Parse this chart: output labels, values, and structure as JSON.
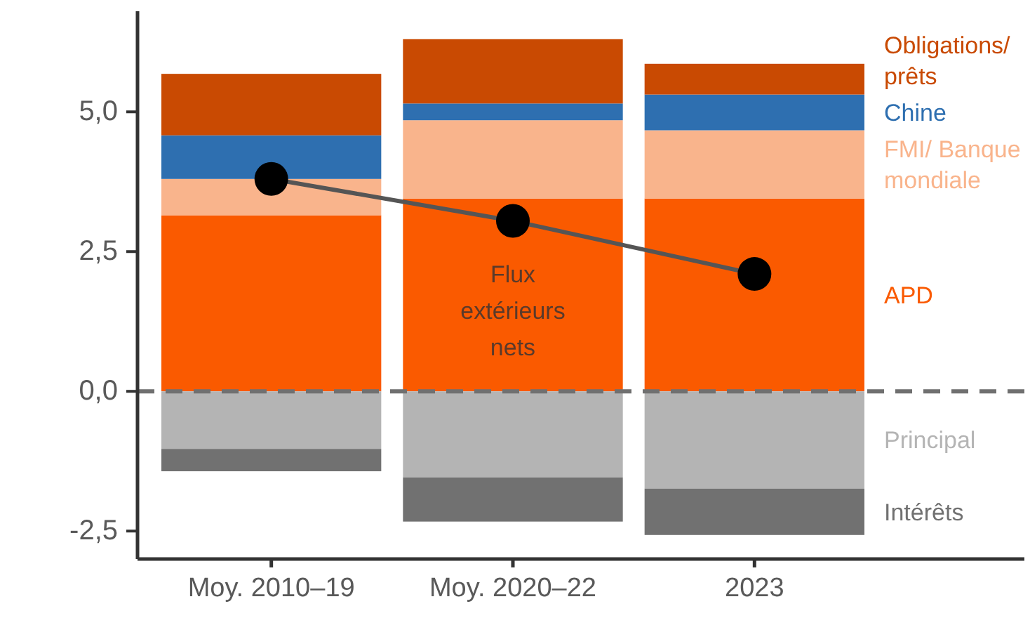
{
  "chart_data": {
    "type": "bar",
    "stacked": true,
    "categories": [
      "Moy. 2010–19",
      "Moy. 2020–22",
      "2023"
    ],
    "series": [
      {
        "name": "APD",
        "color": "#fa5a00",
        "values": [
          3.15,
          3.45,
          3.45
        ]
      },
      {
        "name": "FMI/ Banque mondiale",
        "color": "#f9b48c",
        "values": [
          0.65,
          1.4,
          1.22
        ]
      },
      {
        "name": "Chine",
        "color": "#2e6fb0",
        "values": [
          0.78,
          0.3,
          0.64
        ]
      },
      {
        "name": "Obligations/ prêts",
        "color": "#c94a02",
        "values": [
          1.1,
          1.15,
          0.55
        ]
      },
      {
        "name": "Principal",
        "color": "#b4b4b4",
        "values": [
          -1.03,
          -1.54,
          -1.74
        ]
      },
      {
        "name": "Intérêts",
        "color": "#717171",
        "values": [
          -0.4,
          -0.79,
          -0.83
        ]
      },
      {
        "name": "Flux extérieurs nets",
        "type": "line",
        "color": "#555555",
        "marker": "circle",
        "values": [
          3.8,
          3.05,
          2.1
        ]
      }
    ],
    "ylim": [
      -3.0,
      6.8
    ],
    "yticks": [
      {
        "value": -2.5,
        "label": "-2,5"
      },
      {
        "value": 0,
        "label": "0,0"
      },
      {
        "value": 2.5,
        "label": "2,5"
      },
      {
        "value": 5,
        "label": "5,0"
      }
    ],
    "ref_lines": [
      {
        "axis": "y",
        "value": 0,
        "color": "#707070",
        "line_style": "dashed"
      }
    ],
    "grid": false,
    "legend": "right"
  }
}
